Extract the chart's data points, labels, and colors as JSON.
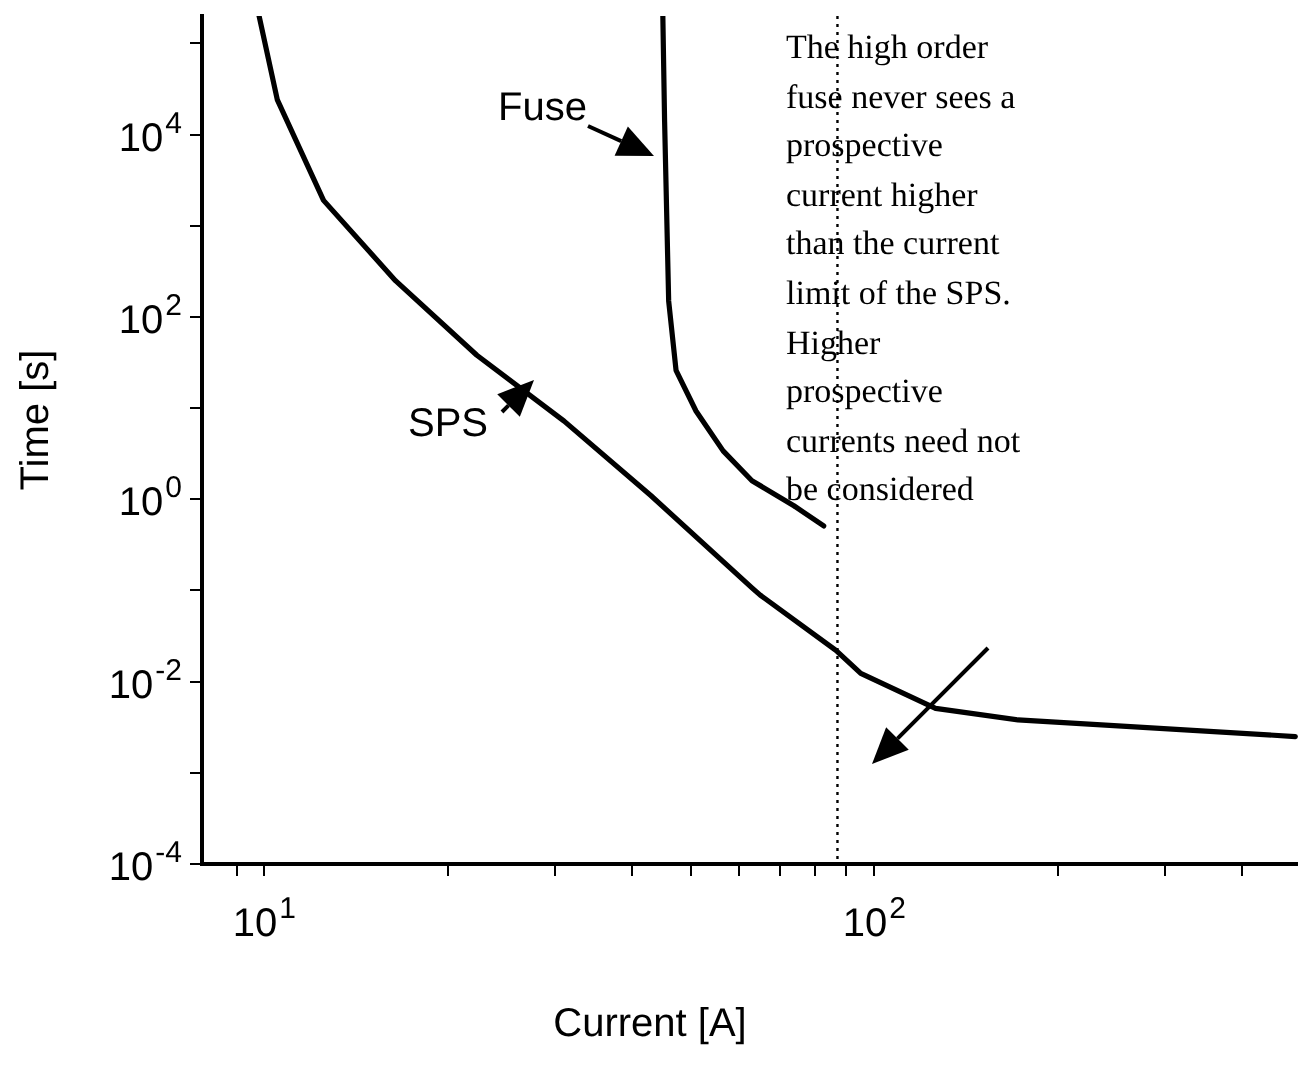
{
  "chart_data": {
    "type": "line",
    "xlabel": "Current [A]",
    "ylabel": "Time [s]",
    "log": "xy",
    "grid": false,
    "legend": "top left",
    "marker": "none",
    "line_style": "solid",
    "xlim": [
      7.9,
      495
    ],
    "ylim": [
      0.0001,
      200000
    ],
    "xticks": [
      {
        "value": 9,
        "label": null
      },
      {
        "value": 10,
        "label": "10$^{1}$"
      },
      {
        "value": 20,
        "label": null
      },
      {
        "value": 30,
        "label": null
      },
      {
        "value": 40,
        "label": null
      },
      {
        "value": 50,
        "label": null
      },
      {
        "value": 60,
        "label": null
      },
      {
        "value": 70,
        "label": null
      },
      {
        "value": 80,
        "label": null
      },
      {
        "value": 90,
        "label": null
      },
      {
        "value": 100,
        "label": "10$^{2}$"
      },
      {
        "value": 200,
        "label": null
      },
      {
        "value": 300,
        "label": null
      },
      {
        "value": 400,
        "label": null
      }
    ],
    "yticks": [
      {
        "value": 0.0001,
        "label": "10$^{-4}$"
      },
      {
        "value": 0.001,
        "label": null
      },
      {
        "value": 0.01,
        "label": "10$^{-2}$"
      },
      {
        "value": 0.1,
        "label": null
      },
      {
        "value": 1,
        "label": "10$^{0}$"
      },
      {
        "value": 10,
        "label": null
      },
      {
        "value": 100,
        "label": "10$^{2}$"
      },
      {
        "value": 1000,
        "label": null
      },
      {
        "value": 10000,
        "label": "10$^{4}$"
      },
      {
        "value": 100000,
        "label": null
      }
    ],
    "series": [
      {
        "name": "Fuse",
        "color": "#000000",
        "x": [
          45,
          45.3,
          46,
          47.3,
          51,
          56.5,
          63,
          73.8,
          82.6
        ],
        "values": [
          200000,
          14000,
          150,
          26,
          9.3,
          3.4,
          1.6,
          0.85,
          0.51
        ]
      },
      {
        "name": "SPS",
        "color": "#000000",
        "x": [
          9.8,
          10.5,
          12.5,
          16.4,
          22.3,
          31,
          43,
          63,
          65,
          86.5,
          95,
          126,
          172,
          247,
          490
        ],
        "values": [
          200000,
          24000,
          1900,
          250,
          38,
          7.2,
          1.1,
          0.107,
          0.089,
          0.022,
          0.0123,
          0.0051,
          0.0038,
          0.0033,
          0.0025
        ]
      }
    ],
    "ref_lines": [
      {
        "axis": "x",
        "value": 87,
        "line_style": "dotted",
        "color": "#000000"
      }
    ],
    "annotations": [
      "The high order\nfuse never sees a\nprospective\ncurrent higher\nthan the current\nlimit of the SPS.\nHigher\nprospective\ncurrents need not\nbe considered"
    ]
  }
}
